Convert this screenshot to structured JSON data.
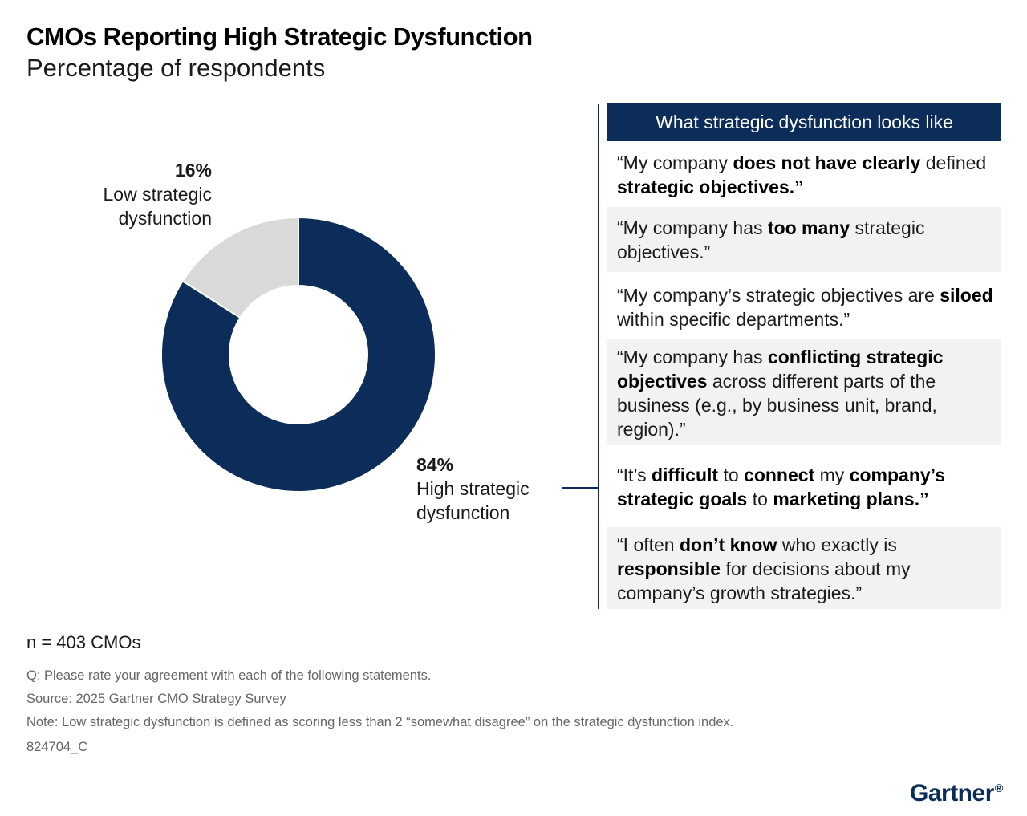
{
  "header": {
    "title": "CMOs Reporting High Strategic Dysfunction",
    "subtitle": "Percentage of respondents"
  },
  "chart_data": {
    "type": "pie",
    "donut": true,
    "title": "CMOs Reporting High Strategic Dysfunction",
    "subtitle": "Percentage of respondents",
    "slices": [
      {
        "label": "High strategic dysfunction",
        "value": 84,
        "value_label": "84%",
        "color": "#0c2c5a"
      },
      {
        "label": "Low strategic dysfunction",
        "value": 16,
        "value_label": "16%",
        "color": "#d9d9d9"
      }
    ]
  },
  "labels": {
    "low_pct": "16%",
    "low_line1": "Low strategic",
    "low_line2": "dysfunction",
    "high_pct": "84%",
    "high_line1": "High strategic",
    "high_line2": "dysfunction"
  },
  "panel": {
    "header": "What strategic dysfunction looks like",
    "quotes": [
      [
        {
          "t": "“My company ",
          "b": false
        },
        {
          "t": "does not have clearly",
          "b": true
        },
        {
          "t": " defined ",
          "b": false
        },
        {
          "t": "strategic objectives.”",
          "b": true
        }
      ],
      [
        {
          "t": "“My company has ",
          "b": false
        },
        {
          "t": "too many",
          "b": true
        },
        {
          "t": " strategic objectives.”",
          "b": false
        }
      ],
      [
        {
          "t": "“My company’s strategic objectives are ",
          "b": false
        },
        {
          "t": "siloed",
          "b": true
        },
        {
          "t": " within specific departments.”",
          "b": false
        }
      ],
      [
        {
          "t": "“My company has ",
          "b": false
        },
        {
          "t": "conflicting strategic objectives",
          "b": true
        },
        {
          "t": " across different parts of the business (e.g., by business unit, brand, region).”",
          "b": false
        }
      ],
      [
        {
          "t": "“It’s ",
          "b": false
        },
        {
          "t": "difficult",
          "b": true
        },
        {
          "t": " to ",
          "b": false
        },
        {
          "t": "connect",
          "b": true
        },
        {
          "t": " my ",
          "b": false
        },
        {
          "t": "company’s strategic goals",
          "b": true
        },
        {
          "t": " to ",
          "b": false
        },
        {
          "t": "marketing plans.”",
          "b": true
        }
      ],
      [
        {
          "t": "“I often ",
          "b": false
        },
        {
          "t": "don’t know",
          "b": true
        },
        {
          "t": " who exactly is ",
          "b": false
        },
        {
          "t": "responsible",
          "b": true
        },
        {
          "t": " for decisions about my company’s growth strategies.”",
          "b": false
        }
      ]
    ]
  },
  "footer": {
    "n": "n  =  403 CMOs",
    "question": "Q: Please rate your agreement with each of the following statements.",
    "source": "Source: 2025 Gartner CMO Strategy Survey",
    "note": "Note: Low strategic dysfunction is defined as scoring less than 2 “somewhat disagree” on the strategic dysfunction index.",
    "code": "824704_C",
    "logo": "Gartner",
    "logo_mark": "®"
  },
  "colors": {
    "navy": "#0c2c5a",
    "light_gray_slice": "#d9d9d9",
    "quote_shade": "#f2f2f2"
  }
}
